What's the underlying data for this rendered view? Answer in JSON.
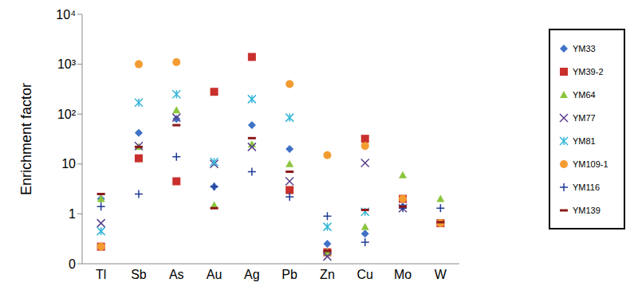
{
  "chart_data": {
    "type": "scatter",
    "y_label": "Enrichment factor",
    "categories": [
      "Tl",
      "Sb",
      "As",
      "Au",
      "Ag",
      "Pb",
      "Zn",
      "Cu",
      "Mo",
      "W"
    ],
    "log": "y",
    "grid": false,
    "legend": "right",
    "ylim": [
      0.1,
      10000
    ],
    "yticks": [
      {
        "value": 0.1,
        "label": "0"
      },
      1,
      10,
      {
        "value": 100,
        "label": "10²"
      },
      {
        "value": 1000,
        "label": "10³"
      },
      {
        "value": 10000,
        "label": "10⁴"
      }
    ],
    "series": [
      {
        "name": "YM33",
        "color": "#3f72c6",
        "marker": "diamond",
        "values": [
          2.0,
          42,
          80,
          3.5,
          60,
          20,
          0.25,
          0.4,
          1.4,
          null
        ]
      },
      {
        "name": "YM39-2",
        "color": "#c9302c",
        "marker": "square",
        "values": [
          0.22,
          13,
          4.5,
          280,
          1400,
          3,
          0.17,
          32,
          2.0,
          0.65
        ]
      },
      {
        "name": "YM64",
        "color": "#8cc63f",
        "marker": "triangle",
        "values": [
          2.0,
          22,
          120,
          1.5,
          25,
          10,
          0.17,
          0.55,
          6,
          2.0
        ]
      },
      {
        "name": "YM77",
        "color": "#5b3f8c",
        "marker": "x",
        "values": [
          0.65,
          23,
          85,
          10,
          22,
          4.5,
          0.14,
          10.5,
          1.3,
          null
        ]
      },
      {
        "name": "YM81",
        "color": "#33b5d8",
        "marker": "star",
        "values": [
          0.45,
          170,
          250,
          11,
          200,
          85,
          0.55,
          1.1,
          null,
          null
        ]
      },
      {
        "name": "YM109-1",
        "color": "#f39c32",
        "marker": "circle",
        "values": [
          0.22,
          1000,
          1100,
          null,
          null,
          400,
          15,
          23,
          2.0,
          0.65
        ]
      },
      {
        "name": "YM116",
        "color": "#1f3a93",
        "marker": "plus",
        "values": [
          1.4,
          2.5,
          14,
          3.5,
          7,
          2.2,
          0.9,
          0.27,
          1.3,
          1.3
        ]
      },
      {
        "name": "YM139",
        "color": "#8b1a1a",
        "marker": "dash",
        "values": [
          2.5,
          22,
          60,
          1.3,
          33,
          7,
          0.18,
          1.2,
          1.4,
          0.68
        ]
      }
    ]
  }
}
